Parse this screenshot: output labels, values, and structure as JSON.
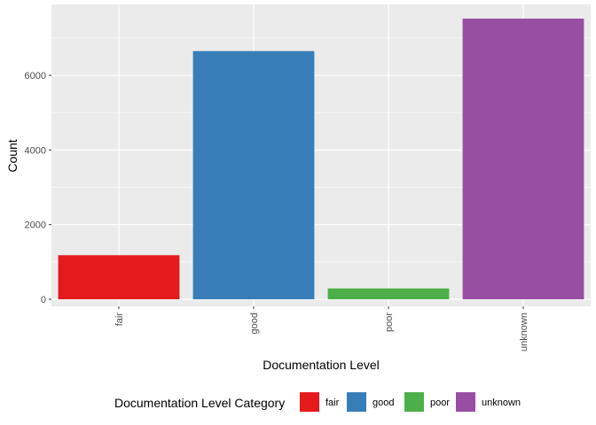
{
  "chart_data": {
    "type": "bar",
    "categories": [
      "fair",
      "good",
      "poor",
      "unknown"
    ],
    "values": [
      1180,
      6650,
      290,
      7520
    ],
    "colors": [
      "#e41a1c",
      "#377eb8",
      "#4daf4a",
      "#984ea3"
    ],
    "xlabel": "Documentation Level",
    "ylabel": "Count",
    "ylim": [
      0,
      7900
    ],
    "yticks": [
      0,
      2000,
      4000,
      6000
    ],
    "grid": true,
    "panel_background": "#ebebeb",
    "x_tick_rotation": -90,
    "legend": {
      "title": "Documentation Level Category",
      "placement": "bottom",
      "entries": [
        "fair",
        "good",
        "poor",
        "unknown"
      ]
    }
  }
}
